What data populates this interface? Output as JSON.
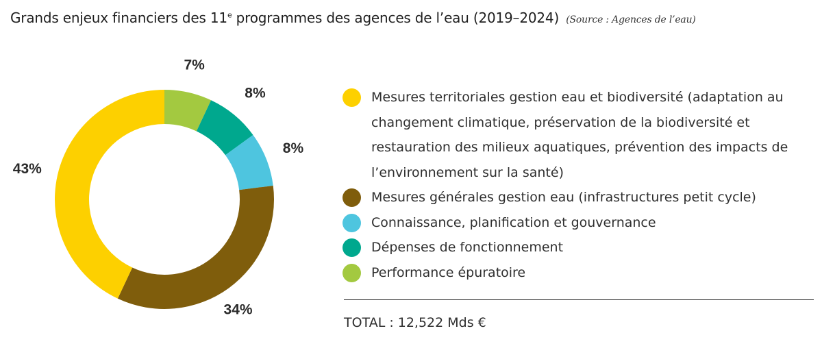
{
  "title": {
    "prefix": "Grands enjeux financiers des 11",
    "superscript": "e",
    "suffix": " programmes des agences de l’eau (2019–2024)",
    "source": "(Source : Agences de l’eau)"
  },
  "chart_data": {
    "type": "pie",
    "title": "Grands enjeux financiers des 11e programmes des agences de l’eau (2019–2024)",
    "categories": [
      "Performance épuratoire",
      "Dépenses de fonctionnement",
      "Connaissance, planification et gouvernance",
      "Mesures générales gestion eau (infrastructures petit cycle)",
      "Mesures territoriales gestion eau et biodiversité (adaptation au changement climatique, préservation de la biodiversité et restauration des milieux aquatiques, prévention des impacts de l’environnement sur la santé)"
    ],
    "values": [
      7,
      8,
      8,
      34,
      43
    ],
    "labels": [
      "7%",
      "8%",
      "8%",
      "34%",
      "43%"
    ],
    "colors": [
      "#a3c940",
      "#00a88e",
      "#4ec5df",
      "#7f5d0c",
      "#fdd000"
    ],
    "units": "%",
    "donut": true,
    "start": "top, clockwise"
  },
  "legend": [
    {
      "label": "Mesures territoriales gestion eau et biodiversité (adaptation au changement climatique, préservation de la biodiversité et restauration des milieux aquatiques, prévention des impacts de l’environnement sur la santé)",
      "color": "#fdd000"
    },
    {
      "label": "Mesures générales gestion eau (infrastructures petit cycle)",
      "color": "#7f5d0c"
    },
    {
      "label": "Connaissance, planification et gouvernance",
      "color": "#4ec5df"
    },
    {
      "label": "Dépenses de fonctionnement",
      "color": "#00a88e"
    },
    {
      "label": "Performance épuratoire",
      "color": "#a3c940"
    }
  ],
  "total": "TOTAL : 12,522 Mds €"
}
